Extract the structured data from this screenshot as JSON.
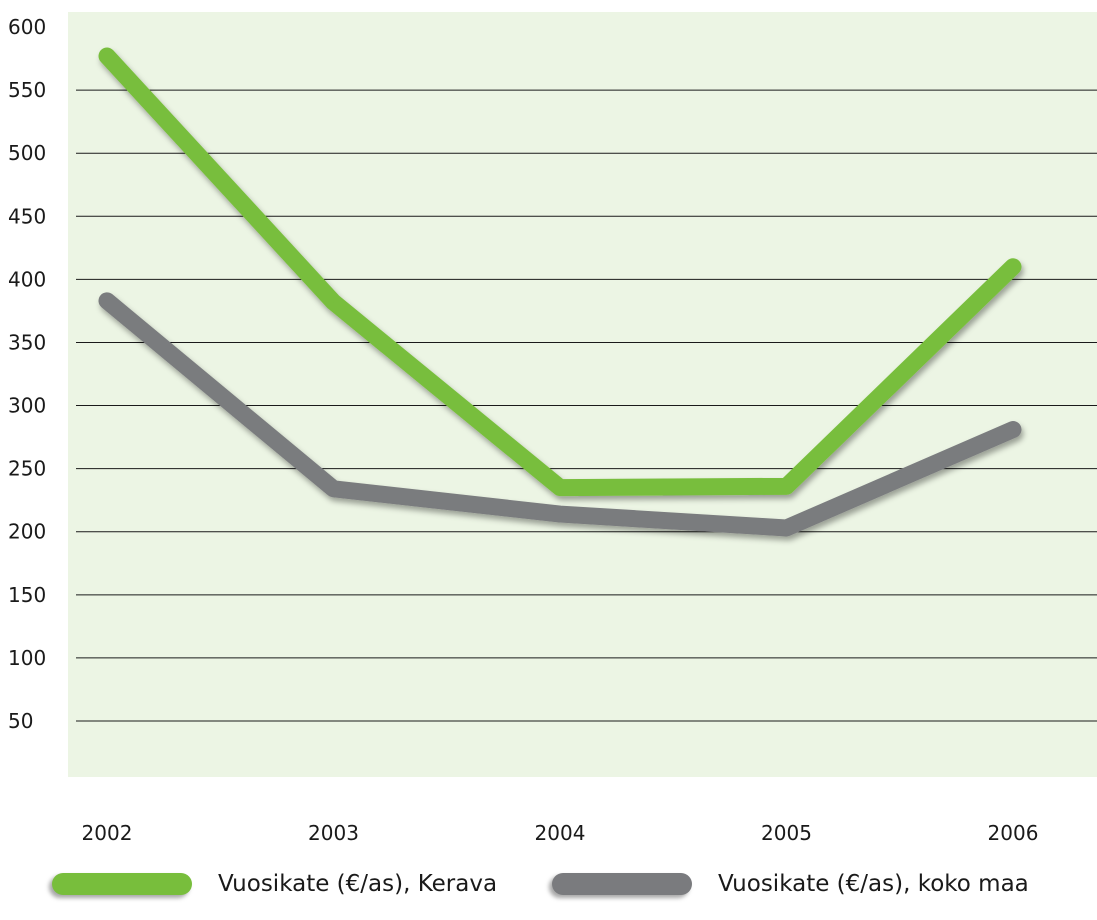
{
  "chart_data": {
    "type": "line",
    "categories": [
      "2002",
      "2003",
      "2004",
      "2005",
      "2006"
    ],
    "y_ticks": [
      "50",
      "100",
      "150",
      "200",
      "250",
      "300",
      "350",
      "400",
      "450",
      "500",
      "550",
      "600"
    ],
    "ylim": [
      0,
      600
    ],
    "grid": true,
    "legend_position": "bottom",
    "series": [
      {
        "name": "Vuosikate (€/as), Kerava",
        "values": [
          577,
          382,
          235,
          236,
          410
        ],
        "color": "#78be3c"
      },
      {
        "name": "Vuosikate (€/as), koko maa",
        "values": [
          383,
          234,
          214,
          203,
          281
        ],
        "color": "#7a7b7e"
      }
    ],
    "title": "",
    "xlabel": "",
    "ylabel": "",
    "plot_background": "#ecf5e4"
  }
}
